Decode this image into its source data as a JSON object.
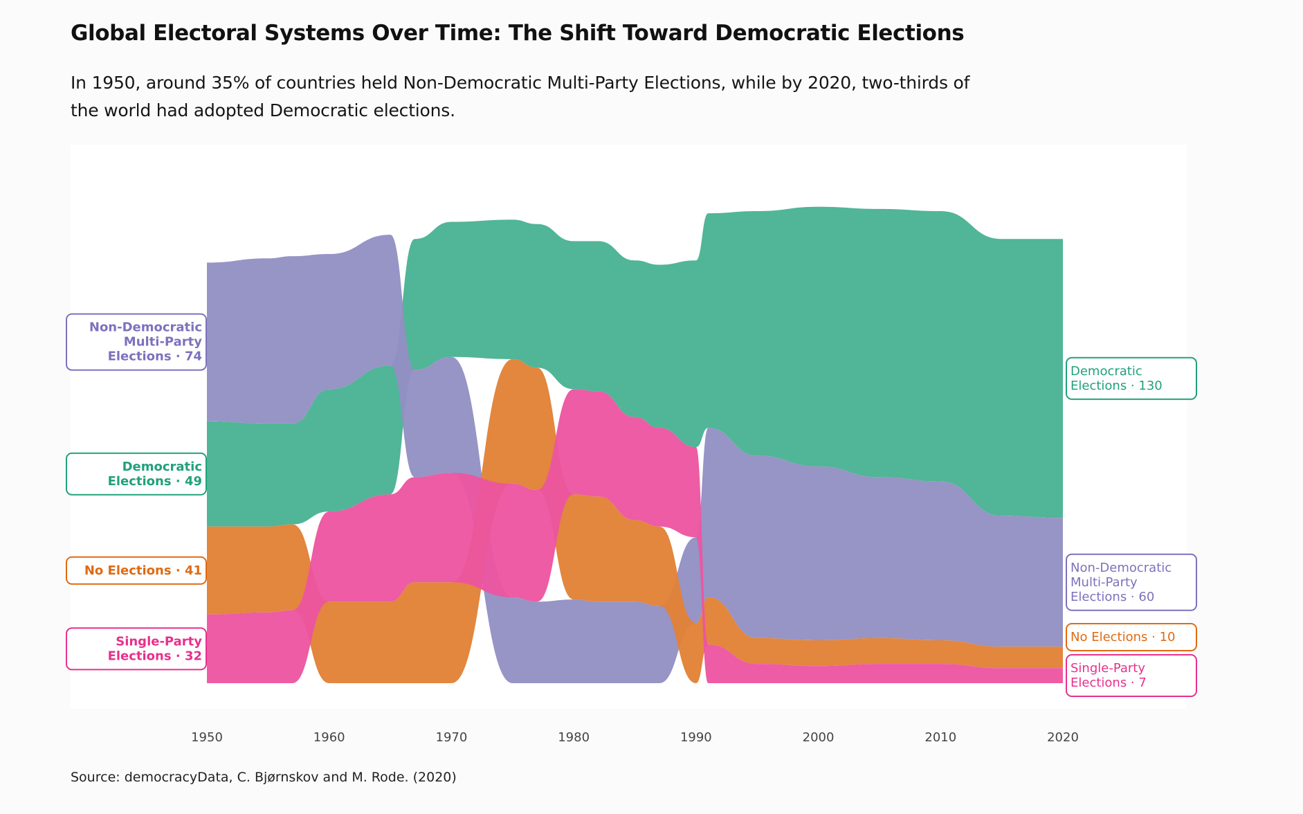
{
  "title": "Global Electoral Systems Over Time: The Shift Toward Democratic Elections",
  "subtitle": "In 1950, around 35% of countries held Non-Democratic Multi-Party Elections, while by 2020, two-thirds of the world had adopted Democratic elections.",
  "source": "Source: democracyData, C. Bjørnskov and M. Rode. (2020)",
  "colors": {
    "Democratic Elections": "#4ab293",
    "Non-Democratic Multi-Party Elections": "#9390c4",
    "No Elections": "#e28136",
    "Single-Party Elections": "#ec55a0",
    "label_democratic": "#21a17b",
    "label_nondem": "#7c72bd",
    "label_noelections": "#df6a12",
    "label_singleparty": "#e7308c",
    "background": "#fbfbfb",
    "panel": "#ffffff"
  },
  "labels": {
    "left": [
      {
        "name": "Non-Democratic Multi-Party Elections",
        "lines": [
          "Non-Democratic",
          "Multi-Party",
          "Elections · 74"
        ]
      },
      {
        "name": "Democratic Elections",
        "lines": [
          "Democratic",
          "Elections · 49"
        ]
      },
      {
        "name": "No Elections",
        "lines": [
          "No Elections · 41"
        ]
      },
      {
        "name": "Single-Party Elections",
        "lines": [
          "Single-Party",
          "Elections · 32"
        ]
      }
    ],
    "right": [
      {
        "name": "Democratic Elections",
        "lines": [
          "Democratic",
          "Elections · 130"
        ]
      },
      {
        "name": "Non-Democratic Multi-Party Elections",
        "lines": [
          "Non-Democratic",
          "Multi-Party",
          "Elections · 60"
        ]
      },
      {
        "name": "No Elections",
        "lines": [
          "No Elections · 10"
        ]
      },
      {
        "name": "Single-Party Elections",
        "lines": [
          "Single-Party",
          "Elections · 7"
        ]
      }
    ]
  },
  "chart_data": {
    "type": "area",
    "subtype": "ranked stream (bump area) chart",
    "title": "Global Electoral Systems Over Time: The Shift Toward Democratic Elections",
    "xlabel": "",
    "ylabel": "",
    "xlim": [
      1950,
      2020
    ],
    "x_ticks": [
      "1950",
      "1960",
      "1970",
      "1980",
      "1990",
      "2000",
      "2010",
      "2020"
    ],
    "x": [
      1950,
      1955,
      1957,
      1960,
      1965,
      1967,
      1970,
      1975,
      1977,
      1980,
      1982,
      1985,
      1987,
      1990,
      1991,
      1995,
      2000,
      2005,
      2010,
      2015,
      2020
    ],
    "series": [
      {
        "name": "Democratic Elections",
        "values": [
          49,
          48,
          47,
          57,
          60,
          61,
          63,
          65,
          67,
          69,
          70,
          73,
          76,
          87,
          100,
          114,
          121,
          125,
          126,
          129,
          130
        ]
      },
      {
        "name": "Non-Democratic Multi-Party Elections",
        "values": [
          74,
          77,
          78,
          63,
          61,
          50,
          54,
          40,
          38,
          39,
          38,
          38,
          36,
          40,
          79,
          85,
          81,
          75,
          74,
          61,
          60
        ]
      },
      {
        "name": "No Elections",
        "values": [
          41,
          40,
          40,
          38,
          38,
          47,
          47,
          58,
          57,
          49,
          49,
          38,
          37,
          28,
          22,
          12,
          12,
          12,
          11,
          10,
          10
        ]
      },
      {
        "name": "Single-Party Elections",
        "values": [
          32,
          33,
          34,
          42,
          50,
          49,
          51,
          53,
          52,
          49,
          49,
          48,
          46,
          42,
          18,
          9,
          8,
          9,
          9,
          7,
          7
        ]
      }
    ],
    "grid": false,
    "legend": "direct labels at left (1950) and right (2020)"
  }
}
